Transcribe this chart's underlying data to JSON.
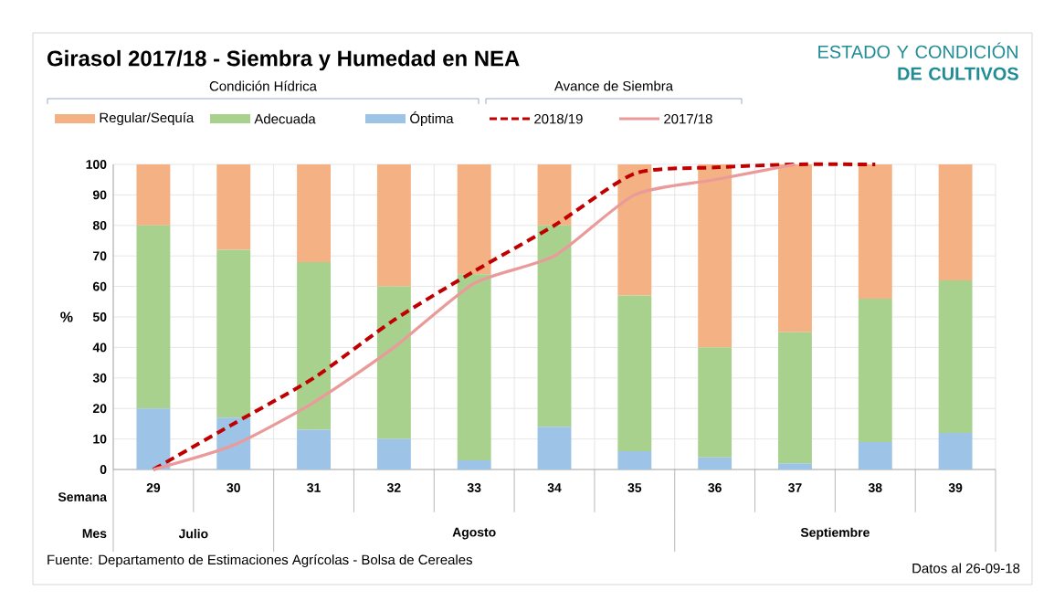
{
  "chart_data": {
    "type": "bar",
    "title": "Girasol 2017/18 - Siembra y Humedad en NEA",
    "subtitle": "ESTADO Y CONDICIÓN **DE CULTIVOS**",
    "xlabel": "Semana",
    "ylabel": "%",
    "categories": [
      "29",
      "30",
      "31",
      "32",
      "33",
      "34",
      "35",
      "36",
      "37",
      "38",
      "39"
    ],
    "stacked": true,
    "series": [
      {
        "name": "Óptima",
        "color": "#9dc3e6",
        "values": [
          20,
          17,
          13,
          10,
          3,
          14,
          6,
          4,
          2,
          9,
          12
        ]
      },
      {
        "name": "Adecuada",
        "color": "#a9d18e",
        "values": [
          60,
          55,
          55,
          50,
          61,
          66,
          51,
          36,
          43,
          47,
          50
        ]
      },
      {
        "name": "Regular/Sequía",
        "color": "#f4b183",
        "values": [
          20,
          28,
          32,
          40,
          36,
          20,
          43,
          60,
          55,
          44,
          38
        ]
      },
      {
        "name": "2018/19",
        "type": "line",
        "line_style": "dashed",
        "color": "#c00000",
        "values": [
          0,
          15,
          30,
          49,
          65,
          80,
          97,
          99,
          100,
          100,
          null
        ]
      },
      {
        "name": "2017/18",
        "type": "line",
        "line_style": "solid",
        "color": "#eb9a9a",
        "values": [
          0,
          8,
          22,
          40,
          61,
          70,
          90,
          95,
          100,
          null,
          null
        ]
      }
    ],
    "ylim": [
      0,
      100
    ],
    "yticks": [
      0,
      10,
      20,
      30,
      40,
      50,
      60,
      70,
      80,
      90,
      100
    ],
    "grid": true,
    "legend": "top",
    "annotations": [
      "Condición Hídrica",
      "Avance de Siembra",
      "Mes",
      "Julio",
      "Agosto",
      "Septiembre",
      "Fuente: Departamento de Estimaciones Agrícolas - Bolsa de Cereales",
      "Datos al 26-09-18"
    ]
  }
}
